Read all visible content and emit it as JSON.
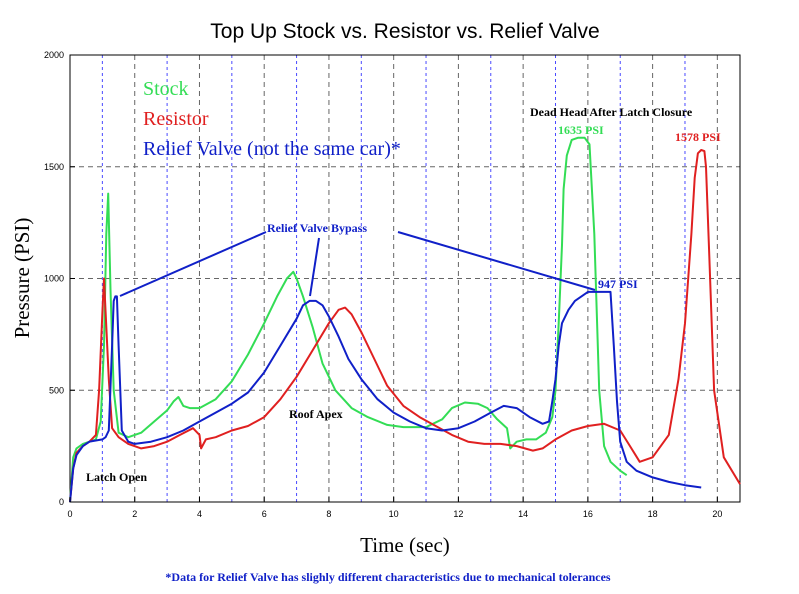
{
  "chart_data": {
    "type": "line",
    "title": "Top Up Stock vs. Resistor vs. Relief Valve",
    "xlabel": "Time (sec)",
    "ylabel": "Pressure (PSI)",
    "xlim": [
      0,
      20.7
    ],
    "ylim": [
      0,
      2000
    ],
    "x_ticks": [
      "0",
      "2",
      "4",
      "6",
      "8",
      "10",
      "12",
      "14",
      "16",
      "18",
      "20"
    ],
    "y_ticks": [
      "0",
      "500",
      "1000",
      "1500",
      "2000"
    ],
    "grid": true,
    "legend_placement": "top-left",
    "colors": {
      "stock": "#33dd55",
      "resistor": "#e02020",
      "relief": "#1020c8",
      "grid_major": "#666666",
      "grid_minor": "#4a4aff"
    },
    "series": [
      {
        "name": "Stock",
        "color": "#33dd55",
        "x": [
          0,
          0.1,
          0.2,
          0.4,
          0.6,
          0.8,
          0.95,
          1.05,
          1.12,
          1.18,
          1.25,
          1.35,
          1.5,
          1.8,
          2.2,
          2.6,
          3.0,
          3.2,
          3.35,
          3.5,
          3.7,
          4.0,
          4.5,
          5.0,
          5.5,
          6.0,
          6.4,
          6.7,
          6.9,
          7.0,
          7.2,
          7.5,
          7.8,
          8.2,
          8.7,
          9.2,
          9.8,
          10.3,
          11.0,
          11.5,
          11.8,
          12.2,
          12.6,
          12.9,
          13.2,
          13.5,
          13.6,
          13.8,
          14.1,
          14.4,
          14.7,
          14.9,
          15.0,
          15.1,
          15.2,
          15.25,
          15.35,
          15.5,
          15.7,
          15.9,
          16.05,
          16.2,
          16.35,
          16.5,
          16.7,
          17.0,
          17.2
        ],
        "y": [
          0,
          200,
          240,
          260,
          270,
          280,
          360,
          700,
          1200,
          1380,
          950,
          500,
          310,
          290,
          310,
          360,
          410,
          450,
          470,
          430,
          420,
          420,
          460,
          540,
          660,
          800,
          920,
          1000,
          1030,
          1000,
          920,
          780,
          620,
          500,
          420,
          380,
          345,
          335,
          335,
          370,
          420,
          445,
          440,
          420,
          370,
          330,
          240,
          270,
          280,
          280,
          310,
          380,
          500,
          800,
          1150,
          1400,
          1550,
          1620,
          1630,
          1630,
          1600,
          1200,
          500,
          250,
          180,
          140,
          120
        ]
      },
      {
        "name": "Resistor",
        "color": "#e02020",
        "x": [
          0,
          0.1,
          0.2,
          0.4,
          0.6,
          0.8,
          0.9,
          1.0,
          1.05,
          1.1,
          1.2,
          1.3,
          1.5,
          1.8,
          2.2,
          2.6,
          3.0,
          3.4,
          3.8,
          4.0,
          4.05,
          4.2,
          4.5,
          5.0,
          5.5,
          6.0,
          6.5,
          7.0,
          7.5,
          8.0,
          8.3,
          8.5,
          8.7,
          9.0,
          9.4,
          9.8,
          10.3,
          10.8,
          11.3,
          11.8,
          12.3,
          12.8,
          13.3,
          13.8,
          14.3,
          14.6,
          15.0,
          15.5,
          16.0,
          16.5,
          17.0,
          17.3,
          17.6,
          18.0,
          18.5,
          18.8,
          19.0,
          19.2,
          19.3,
          19.4,
          19.5,
          19.6,
          19.65,
          19.75,
          19.9,
          20.2,
          20.7
        ],
        "y": [
          0,
          150,
          220,
          250,
          270,
          300,
          500,
          850,
          1000,
          850,
          550,
          330,
          290,
          260,
          240,
          250,
          270,
          300,
          330,
          300,
          240,
          280,
          290,
          320,
          340,
          380,
          460,
          560,
          680,
          800,
          860,
          870,
          840,
          760,
          640,
          520,
          430,
          380,
          340,
          300,
          270,
          260,
          260,
          250,
          230,
          240,
          280,
          320,
          340,
          350,
          320,
          250,
          180,
          200,
          300,
          550,
          800,
          1200,
          1450,
          1560,
          1575,
          1570,
          1500,
          1100,
          500,
          200,
          80
        ]
      },
      {
        "name": "Relief Valve (not the same car)*",
        "color": "#1020c8",
        "x": [
          0,
          0.1,
          0.2,
          0.4,
          0.6,
          0.8,
          1.0,
          1.1,
          1.2,
          1.3,
          1.35,
          1.4,
          1.45,
          1.5,
          1.6,
          1.8,
          2.0,
          2.5,
          3.0,
          3.5,
          4.0,
          4.5,
          5.0,
          5.5,
          6.0,
          6.5,
          7.0,
          7.2,
          7.4,
          7.6,
          7.8,
          8.0,
          8.3,
          8.6,
          9.0,
          9.5,
          10.0,
          10.5,
          11.0,
          11.5,
          12.0,
          12.5,
          13.0,
          13.4,
          13.8,
          14.2,
          14.6,
          14.8,
          14.9,
          15.0,
          15.1,
          15.2,
          15.4,
          15.6,
          15.8,
          16.0,
          16.3,
          16.7,
          16.8,
          16.9,
          17.0,
          17.2,
          17.5,
          18.0,
          18.5,
          19.0,
          19.5
        ],
        "y": [
          0,
          150,
          210,
          250,
          270,
          275,
          280,
          290,
          320,
          700,
          900,
          920,
          920,
          700,
          320,
          270,
          260,
          270,
          290,
          320,
          360,
          400,
          440,
          490,
          580,
          700,
          820,
          880,
          900,
          900,
          880,
          830,
          740,
          640,
          550,
          460,
          400,
          360,
          330,
          320,
          330,
          360,
          400,
          430,
          420,
          380,
          350,
          360,
          450,
          550,
          700,
          800,
          860,
          900,
          920,
          940,
          940,
          940,
          700,
          450,
          270,
          180,
          140,
          110,
          90,
          75,
          65
        ]
      }
    ],
    "annotations": [
      {
        "text": "Dead Head After Latch Closure",
        "color": "#000000"
      },
      {
        "text": "1635 PSI",
        "color": "#33dd55"
      },
      {
        "text": "1578 PSI",
        "color": "#e02020"
      },
      {
        "text": "Relief Valve Bypass",
        "color": "#1020c8"
      },
      {
        "text": "947 PSI",
        "color": "#1020c8"
      },
      {
        "text": "Roof Apex",
        "color": "#000000"
      },
      {
        "text": "Latch Open",
        "color": "#000000"
      }
    ],
    "footnote": "*Data for Relief Valve has slighly different characteristics due to mechanical tolerances"
  }
}
